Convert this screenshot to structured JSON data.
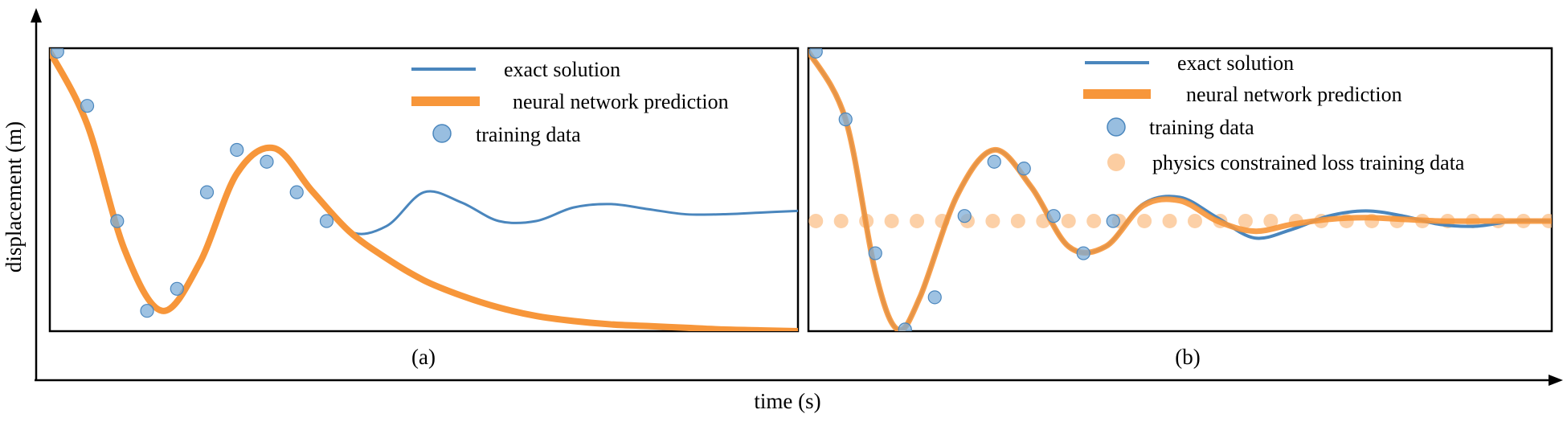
{
  "axes": {
    "xlabel": "time (s)",
    "ylabel": "displacement (m)"
  },
  "colors": {
    "exact": "#4a86bd",
    "nn": "#f7963a",
    "training": "#7eaed8",
    "physics": "#fbc08a"
  },
  "chart_data": [
    {
      "type": "line",
      "panel_label": "(a)",
      "legend_position": "top-right",
      "grid": false,
      "xlim": [
        0,
        1
      ],
      "ylim": [
        -0.65,
        1.02
      ],
      "legend": [
        "exact solution",
        "neural network prediction",
        "training data"
      ],
      "series": [
        {
          "name": "exact solution",
          "x": [
            0,
            0.05,
            0.1,
            0.15,
            0.2,
            0.25,
            0.3,
            0.35,
            0.4,
            0.45,
            0.5,
            0.55,
            0.6,
            0.65,
            0.7,
            0.75,
            0.8,
            0.85,
            0.9,
            0.95,
            1.0
          ],
          "y": [
            1.0,
            0.57,
            -0.17,
            -0.53,
            -0.25,
            0.28,
            0.43,
            0.18,
            -0.06,
            -0.03,
            0.17,
            0.11,
            0.0,
            0.0,
            0.08,
            0.1,
            0.07,
            0.04,
            0.04,
            0.05,
            0.06
          ]
        },
        {
          "name": "neural network prediction",
          "x": [
            0,
            0.05,
            0.1,
            0.15,
            0.2,
            0.25,
            0.3,
            0.35,
            0.4,
            0.45,
            0.5,
            0.55,
            0.6,
            0.65,
            0.7,
            0.75,
            0.8,
            0.85,
            0.9,
            0.95,
            1.0
          ],
          "y": [
            1.0,
            0.57,
            -0.17,
            -0.53,
            -0.25,
            0.28,
            0.43,
            0.18,
            -0.06,
            -0.22,
            -0.35,
            -0.44,
            -0.51,
            -0.56,
            -0.59,
            -0.61,
            -0.62,
            -0.63,
            -0.64,
            -0.645,
            -0.65
          ]
        },
        {
          "name": "training data",
          "x": [
            0.01,
            0.05,
            0.09,
            0.13,
            0.17,
            0.21,
            0.25,
            0.29,
            0.33,
            0.37
          ],
          "y": [
            1.0,
            0.68,
            0.0,
            -0.53,
            -0.4,
            0.17,
            0.42,
            0.35,
            0.17,
            0.0
          ]
        }
      ]
    },
    {
      "type": "line",
      "panel_label": "(b)",
      "legend_position": "top-right",
      "grid": false,
      "xlim": [
        0,
        1
      ],
      "ylim": [
        -0.65,
        1.02
      ],
      "legend": [
        "exact solution",
        "neural network prediction",
        "training data",
        "physics constrained loss training data"
      ],
      "series": [
        {
          "name": "exact solution",
          "x": [
            0,
            0.05,
            0.09,
            0.12,
            0.15,
            0.2,
            0.25,
            0.3,
            0.35,
            0.4,
            0.45,
            0.5,
            0.55,
            0.6,
            0.65,
            0.7,
            0.75,
            0.8,
            0.85,
            0.9,
            0.95,
            1.0
          ],
          "y": [
            1.0,
            0.6,
            -0.3,
            -0.64,
            -0.45,
            0.15,
            0.42,
            0.2,
            -0.15,
            -0.15,
            0.1,
            0.14,
            0.02,
            -0.1,
            -0.05,
            0.03,
            0.06,
            0.03,
            -0.02,
            -0.03,
            0.0,
            0.0
          ]
        },
        {
          "name": "neural network prediction",
          "x": [
            0,
            0.05,
            0.09,
            0.12,
            0.15,
            0.2,
            0.25,
            0.3,
            0.35,
            0.4,
            0.45,
            0.5,
            0.55,
            0.6,
            0.65,
            0.7,
            0.75,
            0.8,
            0.85,
            0.9,
            0.95,
            1.0
          ],
          "y": [
            1.0,
            0.6,
            -0.3,
            -0.64,
            -0.45,
            0.15,
            0.42,
            0.2,
            -0.15,
            -0.15,
            0.09,
            0.12,
            0.0,
            -0.06,
            -0.02,
            0.01,
            0.02,
            0.01,
            0.0,
            0.0,
            0.0,
            0.0
          ]
        },
        {
          "name": "training data",
          "x": [
            0.01,
            0.05,
            0.09,
            0.13,
            0.17,
            0.21,
            0.25,
            0.29,
            0.33,
            0.37,
            0.41
          ],
          "y": [
            1.0,
            0.6,
            -0.19,
            -0.64,
            -0.45,
            0.03,
            0.35,
            0.31,
            0.03,
            -0.19,
            0.0
          ]
        },
        {
          "name": "physics constrained loss training data",
          "x": [
            0.01,
            0.044,
            0.078,
            0.112,
            0.146,
            0.18,
            0.214,
            0.248,
            0.282,
            0.316,
            0.35,
            0.384,
            0.418,
            0.452,
            0.486,
            0.52,
            0.554,
            0.588,
            0.622,
            0.656,
            0.69,
            0.724,
            0.758,
            0.792,
            0.826,
            0.86,
            0.894,
            0.928,
            0.962,
            0.996
          ],
          "y": [
            0,
            0,
            0,
            0,
            0,
            0,
            0,
            0,
            0,
            0,
            0,
            0,
            0,
            0,
            0,
            0,
            0,
            0,
            0,
            0,
            0,
            0,
            0,
            0,
            0,
            0,
            0,
            0,
            0,
            0
          ]
        }
      ]
    }
  ]
}
